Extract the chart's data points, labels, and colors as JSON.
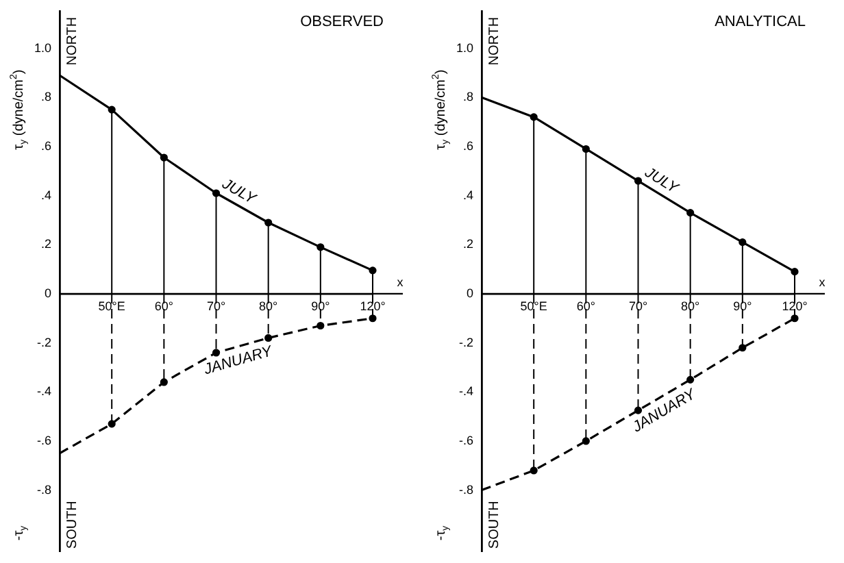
{
  "chart_data": [
    {
      "type": "line",
      "title": "OBSERVED",
      "ylabel": "τ$_{y}$ (dyne/cm$^{2}$)",
      "xlabel": "x",
      "annotations": [
        "NORTH",
        "SOUTH",
        "-τ$_{y}$"
      ],
      "categories": [
        null,
        "50°E",
        "60°",
        "70°",
        "80°",
        "90°",
        "120°"
      ],
      "series": [
        {
          "name": "JULY",
          "color": "#000000",
          "line_style": "solid",
          "values": [
            0.89,
            0.75,
            0.555,
            0.41,
            0.29,
            0.19,
            0.095
          ]
        },
        {
          "type": "lollipop",
          "color": "#000000",
          "line_style": "solid",
          "marker": "circle",
          "values": [
            null,
            0.75,
            0.555,
            0.41,
            0.29,
            0.19,
            0.095
          ]
        },
        {
          "name": "JANUARY",
          "color": "#000000",
          "line_style": "dashed",
          "values": [
            -0.65,
            -0.53,
            -0.36,
            -0.24,
            -0.18,
            -0.13,
            -0.1
          ]
        },
        {
          "type": "lollipop",
          "color": "#000000",
          "line_style": "dashed",
          "marker": "circle",
          "values": [
            null,
            -0.53,
            -0.36,
            -0.24,
            -0.18,
            -0.13,
            -0.1
          ]
        }
      ],
      "ylim": [
        -1.05,
        1.15
      ],
      "yticks": [
        {
          "value": 1.0,
          "label": "1.0"
        },
        {
          "value": 0.8,
          "label": ".8"
        },
        {
          "value": 0.6,
          "label": ".6"
        },
        {
          "value": 0.4,
          "label": ".4"
        },
        {
          "value": 0.2,
          "label": ".2"
        },
        0,
        {
          "value": -0.2,
          "label": "-.2"
        },
        {
          "value": -0.4,
          "label": "-.4"
        },
        {
          "value": -0.6,
          "label": "-.6"
        },
        {
          "value": -0.8,
          "label": "-.8"
        }
      ],
      "grid": false,
      "legend": false
    },
    {
      "type": "line",
      "title": "ANALYTICAL",
      "ylabel": "τ$_{y}$ (dyne/cm$^{2}$)",
      "xlabel": "x",
      "annotations": [
        "NORTH",
        "SOUTH",
        "-τ$_{y}$"
      ],
      "categories": [
        null,
        "50°E",
        "60°",
        "70°",
        "80°",
        "90°",
        "120°"
      ],
      "series": [
        {
          "name": "JULY",
          "color": "#000000",
          "line_style": "solid",
          "values": [
            0.8,
            0.72,
            0.59,
            0.46,
            0.33,
            0.21,
            0.09
          ]
        },
        {
          "type": "lollipop",
          "color": "#000000",
          "line_style": "solid",
          "marker": "circle",
          "values": [
            null,
            0.72,
            0.59,
            0.46,
            0.33,
            0.21,
            0.09
          ]
        },
        {
          "name": "JANUARY",
          "color": "#000000",
          "line_style": "dashed",
          "values": [
            -0.8,
            -0.72,
            -0.6,
            -0.475,
            -0.35,
            -0.22,
            -0.1
          ]
        },
        {
          "type": "lollipop",
          "color": "#000000",
          "line_style": "dashed",
          "marker": "circle",
          "values": [
            null,
            -0.72,
            -0.6,
            -0.475,
            -0.35,
            -0.22,
            -0.1
          ]
        }
      ],
      "ylim": [
        -1.05,
        1.15
      ],
      "yticks": [
        {
          "value": 1.0,
          "label": "1.0"
        },
        {
          "value": 0.8,
          "label": ".8"
        },
        {
          "value": 0.6,
          "label": ".6"
        },
        {
          "value": 0.4,
          "label": ".4"
        },
        {
          "value": 0.2,
          "label": ".2"
        },
        0,
        {
          "value": -0.2,
          "label": "-.2"
        },
        {
          "value": -0.4,
          "label": "-.4"
        },
        {
          "value": -0.6,
          "label": "-.6"
        },
        {
          "value": -0.8,
          "label": "-.8"
        }
      ],
      "grid": false,
      "legend": false
    }
  ]
}
